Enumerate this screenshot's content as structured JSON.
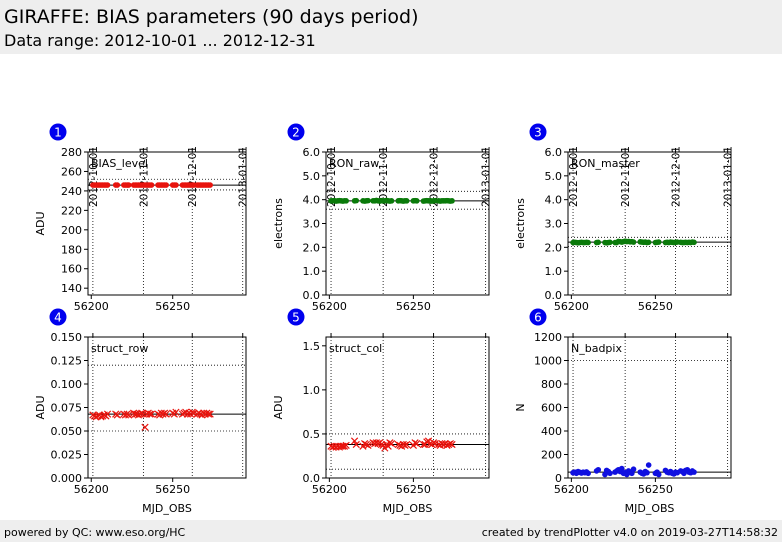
{
  "header": {
    "title": "GIRAFFE: BIAS parameters (90 days period)",
    "subtitle": "Data range: 2012-10-01 ... 2012-12-31"
  },
  "footer": {
    "left": "powered by QC: www.eso.org/HC",
    "right": "created by trendPlotter v4.0 on 2019-03-27T14:58:32"
  },
  "colors": {
    "red": "#e8140e",
    "green": "#0a7a0a",
    "blue": "#1010e0",
    "badge": "#0000ee"
  },
  "chart_data": [
    {
      "type": "scatter",
      "panel": "1",
      "label": "BIAS_level",
      "ylabel": "ADU",
      "xlabel": "",
      "xlim": [
        56198,
        56295
      ],
      "ylim": [
        133,
        280
      ],
      "yticks": [
        140,
        160,
        180,
        200,
        220,
        240,
        260,
        280
      ],
      "ytick_labels": [
        "140",
        "160",
        "180",
        "200",
        "220",
        "240",
        "260",
        "280"
      ],
      "xticks": [
        56200,
        56250
      ],
      "xtick_labels": [
        "56200",
        "56250"
      ],
      "top_ticks": [
        56201,
        56232,
        56262,
        56293
      ],
      "top_tick_labels": [
        "2012-10-01",
        "2012-11-01",
        "2012-12-01",
        "2013-01-01"
      ],
      "ref_line": 246,
      "ref_band": [
        241,
        252
      ],
      "marker": "dot",
      "color": "red",
      "x": [
        56201,
        56202,
        56203,
        56204,
        56205,
        56206,
        56207,
        56208,
        56209,
        56210,
        56215,
        56216,
        56220,
        56221,
        56222,
        56223,
        56226,
        56227,
        56228,
        56229,
        56230,
        56231,
        56232,
        56233,
        56234,
        56235,
        56236,
        56237,
        56241,
        56242,
        56243,
        56244,
        56245,
        56246,
        56250,
        56251,
        56252,
        56256,
        56257,
        56258,
        56259,
        56260,
        56261,
        56262,
        56263,
        56265,
        56266,
        56267,
        56268,
        56269,
        56270,
        56271,
        56272,
        56273
      ],
      "y": [
        246,
        246,
        246,
        246,
        246,
        246,
        246,
        246,
        246,
        246,
        246,
        246,
        246,
        246,
        246,
        246,
        246,
        246,
        246,
        246,
        246,
        246,
        246,
        246,
        246,
        246,
        246,
        246,
        246,
        246,
        246,
        246,
        246,
        246,
        246,
        246,
        246,
        246,
        246,
        246,
        246,
        246,
        246,
        246,
        246,
        246,
        246,
        246,
        246,
        246,
        246,
        246,
        246,
        246
      ]
    },
    {
      "type": "scatter",
      "panel": "2",
      "label": "RON_raw",
      "ylabel": "electrons",
      "xlabel": "",
      "xlim": [
        56198,
        56295
      ],
      "ylim": [
        0,
        6.0
      ],
      "yticks": [
        0,
        1,
        2,
        3,
        4,
        5,
        6
      ],
      "ytick_labels": [
        "0.0",
        "1.0",
        "2.0",
        "3.0",
        "4.0",
        "5.0",
        "6.0"
      ],
      "xticks": [
        56200,
        56250
      ],
      "xtick_labels": [
        "56200",
        "56250"
      ],
      "top_ticks": [
        56201,
        56232,
        56262,
        56293
      ],
      "top_tick_labels": [
        "2012-10-01",
        "2012-11-01",
        "2012-12-01",
        "2013-01-01"
      ],
      "ref_line": 3.95,
      "ref_band": [
        3.6,
        4.35
      ],
      "marker": "dot",
      "color": "green",
      "x": [
        56201,
        56202,
        56203,
        56204,
        56205,
        56206,
        56207,
        56208,
        56209,
        56210,
        56215,
        56216,
        56220,
        56221,
        56222,
        56223,
        56226,
        56227,
        56228,
        56229,
        56230,
        56231,
        56232,
        56233,
        56234,
        56235,
        56236,
        56237,
        56241,
        56242,
        56243,
        56244,
        56245,
        56246,
        56250,
        56251,
        56252,
        56256,
        56257,
        56258,
        56259,
        56260,
        56261,
        56262,
        56263,
        56265,
        56266,
        56267,
        56268,
        56269,
        56270,
        56271,
        56272,
        56273
      ],
      "y": [
        3.95,
        3.95,
        3.96,
        3.94,
        3.95,
        3.96,
        3.95,
        3.94,
        3.95,
        3.95,
        3.95,
        3.96,
        3.95,
        3.94,
        3.95,
        3.96,
        3.95,
        3.95,
        3.97,
        3.95,
        3.94,
        3.96,
        3.95,
        3.95,
        3.97,
        3.95,
        3.94,
        3.95,
        3.95,
        3.96,
        3.95,
        3.94,
        3.95,
        3.95,
        3.95,
        3.96,
        3.95,
        3.94,
        3.95,
        3.96,
        3.95,
        3.95,
        3.94,
        3.95,
        3.96,
        3.95,
        3.94,
        3.95,
        3.95,
        3.95,
        3.96,
        3.95,
        3.94,
        3.95
      ]
    },
    {
      "type": "scatter",
      "panel": "3",
      "label": "RON_master",
      "ylabel": "electrons",
      "xlabel": "",
      "xlim": [
        56198,
        56295
      ],
      "ylim": [
        0,
        6.0
      ],
      "yticks": [
        0,
        1,
        2,
        3,
        4,
        5,
        6
      ],
      "ytick_labels": [
        "0.0",
        "1.0",
        "2.0",
        "3.0",
        "4.0",
        "5.0",
        "6.0"
      ],
      "xticks": [
        56200,
        56250
      ],
      "xtick_labels": [
        "56200",
        "56250"
      ],
      "top_ticks": [
        56201,
        56232,
        56262,
        56293
      ],
      "top_tick_labels": [
        "2012-10-01",
        "2012-11-01",
        "2012-12-01",
        "2013-01-01"
      ],
      "ref_line": 2.22,
      "ref_band": [
        2.03,
        2.42
      ],
      "marker": "dot",
      "color": "green",
      "x": [
        56201,
        56202,
        56203,
        56204,
        56205,
        56206,
        56207,
        56208,
        56209,
        56210,
        56215,
        56216,
        56220,
        56221,
        56222,
        56223,
        56226,
        56227,
        56228,
        56229,
        56230,
        56231,
        56232,
        56233,
        56234,
        56235,
        56236,
        56237,
        56241,
        56242,
        56243,
        56244,
        56245,
        56246,
        56250,
        56251,
        56252,
        56256,
        56257,
        56258,
        56259,
        56260,
        56261,
        56262,
        56263,
        56265,
        56266,
        56267,
        56268,
        56269,
        56270,
        56271,
        56272,
        56273
      ],
      "y": [
        2.2,
        2.21,
        2.2,
        2.19,
        2.2,
        2.21,
        2.2,
        2.2,
        2.21,
        2.2,
        2.2,
        2.21,
        2.2,
        2.19,
        2.2,
        2.21,
        2.2,
        2.2,
        2.25,
        2.24,
        2.22,
        2.24,
        2.26,
        2.24,
        2.25,
        2.23,
        2.24,
        2.22,
        2.23,
        2.22,
        2.21,
        2.22,
        2.2,
        2.21,
        2.2,
        2.21,
        2.22,
        2.2,
        2.21,
        2.2,
        2.22,
        2.21,
        2.2,
        2.21,
        2.22,
        2.21,
        2.2,
        2.2,
        2.21,
        2.2,
        2.21,
        2.2,
        2.22,
        2.21
      ]
    },
    {
      "type": "scatter",
      "panel": "4",
      "label": "struct_row",
      "ylabel": "ADU",
      "xlabel": "MJD_OBS",
      "xlim": [
        56198,
        56295
      ],
      "ylim": [
        0,
        0.15
      ],
      "yticks": [
        0,
        0.025,
        0.05,
        0.075,
        0.1,
        0.125,
        0.15
      ],
      "ytick_labels": [
        "0.000",
        "0.025",
        "0.050",
        "0.075",
        "0.100",
        "0.125",
        "0.150"
      ],
      "xticks": [
        56200,
        56250
      ],
      "xtick_labels": [
        "56200",
        "56250"
      ],
      "top_ticks": [
        56201,
        56232,
        56262,
        56293
      ],
      "top_tick_labels": [],
      "ref_line": 0.068,
      "ref_band": [
        0.05,
        0.12
      ],
      "marker": "cross",
      "color": "red",
      "x": [
        56201,
        56202,
        56203,
        56204,
        56205,
        56206,
        56207,
        56208,
        56209,
        56210,
        56215,
        56216,
        56220,
        56221,
        56222,
        56223,
        56226,
        56227,
        56228,
        56229,
        56230,
        56231,
        56232,
        56233,
        56234,
        56235,
        56236,
        56237,
        56241,
        56242,
        56243,
        56244,
        56245,
        56246,
        56250,
        56251,
        56252,
        56256,
        56257,
        56258,
        56259,
        56260,
        56261,
        56262,
        56263,
        56265,
        56266,
        56267,
        56268,
        56269,
        56270,
        56271,
        56272,
        56273
      ],
      "y": [
        0.067,
        0.066,
        0.065,
        0.066,
        0.067,
        0.065,
        0.066,
        0.067,
        0.066,
        0.068,
        0.068,
        0.067,
        0.068,
        0.067,
        0.068,
        0.067,
        0.069,
        0.068,
        0.068,
        0.067,
        0.068,
        0.069,
        0.068,
        0.054,
        0.068,
        0.069,
        0.068,
        0.068,
        0.068,
        0.067,
        0.069,
        0.068,
        0.069,
        0.068,
        0.069,
        0.068,
        0.07,
        0.068,
        0.069,
        0.07,
        0.068,
        0.069,
        0.068,
        0.07,
        0.069,
        0.068,
        0.069,
        0.068,
        0.067,
        0.069,
        0.068,
        0.069,
        0.068,
        0.068
      ]
    },
    {
      "type": "scatter",
      "panel": "5",
      "label": "struct_col",
      "ylabel": "ADU",
      "xlabel": "MJD_OBS",
      "xlim": [
        56198,
        56295
      ],
      "ylim": [
        0,
        1.6
      ],
      "yticks": [
        0,
        0.5,
        1.0,
        1.5
      ],
      "ytick_labels": [
        "0.0",
        "0.5",
        "1.0",
        "1.5"
      ],
      "xticks": [
        56200,
        56250
      ],
      "xtick_labels": [
        "56200",
        "56250"
      ],
      "top_ticks": [
        56201,
        56232,
        56262,
        56293
      ],
      "top_tick_labels": [],
      "ref_line": 0.38,
      "ref_band": [
        0.1,
        0.5
      ],
      "marker": "cross",
      "color": "red",
      "x": [
        56201,
        56202,
        56203,
        56204,
        56205,
        56206,
        56207,
        56208,
        56209,
        56210,
        56215,
        56216,
        56220,
        56221,
        56222,
        56223,
        56226,
        56227,
        56228,
        56229,
        56230,
        56231,
        56232,
        56233,
        56234,
        56235,
        56236,
        56237,
        56241,
        56242,
        56243,
        56244,
        56245,
        56246,
        56250,
        56251,
        56252,
        56256,
        56257,
        56258,
        56259,
        56260,
        56261,
        56262,
        56263,
        56265,
        56266,
        56267,
        56268,
        56269,
        56270,
        56271,
        56272,
        56273
      ],
      "y": [
        0.36,
        0.35,
        0.36,
        0.35,
        0.36,
        0.35,
        0.36,
        0.36,
        0.36,
        0.37,
        0.42,
        0.38,
        0.36,
        0.39,
        0.38,
        0.37,
        0.4,
        0.39,
        0.4,
        0.39,
        0.4,
        0.38,
        0.37,
        0.34,
        0.38,
        0.36,
        0.4,
        0.39,
        0.38,
        0.37,
        0.36,
        0.38,
        0.37,
        0.38,
        0.37,
        0.4,
        0.39,
        0.38,
        0.38,
        0.41,
        0.42,
        0.39,
        0.38,
        0.4,
        0.39,
        0.38,
        0.37,
        0.39,
        0.38,
        0.39,
        0.37,
        0.38,
        0.39,
        0.38
      ]
    },
    {
      "type": "scatter",
      "panel": "6",
      "label": "N_badpix",
      "ylabel": "N",
      "xlabel": "MJD_OBS",
      "xlim": [
        56198,
        56295
      ],
      "ylim": [
        0,
        1200
      ],
      "yticks": [
        0,
        200,
        400,
        600,
        800,
        1000,
        1200
      ],
      "ytick_labels": [
        "0",
        "200",
        "400",
        "600",
        "800",
        "1000",
        "1200"
      ],
      "xticks": [
        56200,
        56250
      ],
      "xtick_labels": [
        "56200",
        "56250"
      ],
      "top_ticks": [
        56201,
        56232,
        56262,
        56293
      ],
      "top_tick_labels": [],
      "ref_line": 50,
      "ref_band": [
        0,
        1000
      ],
      "marker": "dot",
      "color": "blue",
      "x": [
        56201,
        56202,
        56203,
        56204,
        56205,
        56206,
        56207,
        56208,
        56209,
        56210,
        56215,
        56216,
        56220,
        56221,
        56222,
        56223,
        56226,
        56227,
        56228,
        56229,
        56230,
        56231,
        56232,
        56233,
        56234,
        56235,
        56236,
        56237,
        56241,
        56242,
        56243,
        56244,
        56245,
        56246,
        56250,
        56251,
        56252,
        56256,
        56257,
        56258,
        56259,
        56260,
        56261,
        56262,
        56263,
        56265,
        56266,
        56267,
        56268,
        56269,
        56270,
        56271,
        56272,
        56273
      ],
      "y": [
        45,
        50,
        40,
        55,
        48,
        42,
        50,
        45,
        52,
        40,
        60,
        70,
        30,
        65,
        55,
        40,
        50,
        60,
        70,
        55,
        80,
        40,
        45,
        30,
        60,
        50,
        40,
        75,
        50,
        40,
        35,
        55,
        45,
        110,
        40,
        50,
        30,
        65,
        50,
        45,
        55,
        40,
        35,
        50,
        45,
        60,
        55,
        40,
        65,
        70,
        50,
        45,
        60,
        50
      ]
    }
  ]
}
